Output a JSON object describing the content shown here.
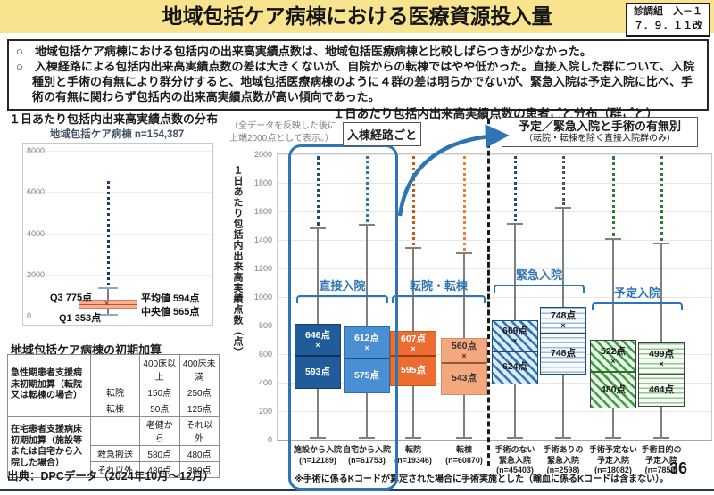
{
  "header": {
    "title": "地域包括ケア病棟における医療資源投入量",
    "ref_line1": "診調組　入－１",
    "ref_line2": "７．９．１１改"
  },
  "summary": {
    "bullets": [
      "地域包括ケア病棟における包括内の出来高実績点数は、地域包括医療病棟と比較しばらつきが少なかった。",
      "入棟経路による包括内出来高実績点数の差は大きくないが、自院からの転棟ではやや低かった。直接入院した群について、入院種別と手術の有無により群分けすると、地域包括医療病棟のように４群の差は明らかでないが、緊急入院は予定入院に比べ、手術の有無に関わらず包括内の出来高実績点数が高い傾向であった。"
    ]
  },
  "left_panel": {
    "heading": "１日あたり包括内出来高実績点数の分布",
    "table": {
      "title": "地域包括ケア病棟の初期加算",
      "groups": [
        {
          "label": "急性期患者支援病床初期加算（転院又は転棟の場合）",
          "rows": [
            [
              "",
              "400床以上",
              "400床未満"
            ],
            [
              "転院",
              "150点",
              "250点"
            ],
            [
              "転棟",
              "50点",
              "125点"
            ]
          ]
        },
        {
          "label": "在宅患者支援病床初期加算（施設等または自宅から入院した場合）",
          "rows": [
            [
              "",
              "老健から",
              "それ以外"
            ],
            [
              "救急搬送",
              "580点",
              "480点"
            ],
            [
              "それ以外",
              "480点",
              "380点"
            ]
          ]
        }
      ]
    },
    "source": "出典：DPCデータ（2024年10月～12月）"
  },
  "right_panel": {
    "route_box_label": "入棟経路ごと",
    "group_box_label_line1": "予定／緊急入院と手術の有無別",
    "group_box_label_line2": "（転院・転棟を除く直接入院群のみ）",
    "footnote": "※手術に係るKコードが算定された場合に手術実施とした（輸血に係るKコードは含まない）。",
    "page_number": "36",
    "accent_color": "#2E75B6"
  },
  "chart_data": [
    {
      "type": "boxplot",
      "title": "地域包括ケア病棟 n=154,387",
      "ylim": [
        0,
        8000
      ],
      "yticks": [
        0,
        2000,
        4000,
        6000,
        8000
      ],
      "grid": "faint",
      "series": [
        {
          "name": "地域包括ケア病棟",
          "q1": 353,
          "median": 565,
          "mean": 594,
          "q3": 775,
          "whisker_low": 0,
          "whisker_high": 1400,
          "outlier_max": 6550
        }
      ],
      "labels": {
        "q3": "Q3 775点",
        "q1": "Q1 353点",
        "mean": "平均値 594点",
        "median": "中央値 565点"
      },
      "box_color": "#F6B28E",
      "box_border": "#D87C5A",
      "median_color": "#C0504D",
      "dot_color": "#1F3864",
      "cap_color": "#8EA9C8"
    },
    {
      "type": "boxplot",
      "title": "１日あたり包括内出来高実績点数の患者ごと分布（群ごと）",
      "ylabel": "１日あたり包括内出来高実績点数（点）",
      "note": "（全データを反映した後に\n上端2000点として表示。）",
      "ylim": [
        0,
        2000
      ],
      "yticks": [
        0,
        200,
        400,
        600,
        800,
        1000,
        1200,
        1400,
        1600,
        1800,
        2000
      ],
      "grid": "on",
      "groups": [
        {
          "label": "直接入院",
          "from": 0,
          "to": 1,
          "bracket_y": 158
        },
        {
          "label": "転院・転棟",
          "from": 2,
          "to": 3,
          "bracket_y": 158
        },
        {
          "label": "緊急入院",
          "from": 4,
          "to": 5,
          "bracket_y": 146
        },
        {
          "label": "予定入院",
          "from": 6,
          "to": 7,
          "bracket_y": 166
        }
      ],
      "boxes": [
        {
          "label": "施設から入院",
          "n_label": "(n=12189)",
          "mean": 646,
          "median": 593,
          "q1": 355,
          "q3": 815,
          "whisker_low": 0,
          "whisker_high": 1490,
          "style": {
            "pattern": "solid",
            "fill": "#1F5C99",
            "stripe": "",
            "border": "#173F66",
            "text": "#FFFFFF",
            "median": "#102E4E",
            "dots": "#1F4E79"
          }
        },
        {
          "label": "自宅から入院",
          "n_label": "(n=61753)",
          "mean": 612,
          "median": 575,
          "q1": 325,
          "q3": 795,
          "whisker_low": 0,
          "whisker_high": 1510,
          "style": {
            "pattern": "solid",
            "fill": "#4A8FD3",
            "stripe": "",
            "border": "#2F6DA8",
            "text": "#FFFFFF",
            "median": "#1F4E79",
            "dots": "#2E75B6"
          }
        },
        {
          "label": "転院",
          "n_label": "(n=19346)",
          "mean": 607,
          "median": 595,
          "q1": 375,
          "q3": 765,
          "whisker_low": 0,
          "whisker_high": 1350,
          "style": {
            "pattern": "solid",
            "fill": "#ED6C31",
            "stripe": "",
            "border": "#C55A11",
            "text": "#FFFFFF",
            "median": "#9C3B0C",
            "dots": "#C55A11"
          }
        },
        {
          "label": "転棟",
          "n_label": "(n=60870)",
          "mean": 560,
          "median": 543,
          "q1": 315,
          "q3": 715,
          "whisker_low": 0,
          "whisker_high": 1310,
          "style": {
            "pattern": "solid",
            "fill": "#F5A87E",
            "stripe": "",
            "border": "#D98C63",
            "text": "#333333",
            "median": "#8C5A3C",
            "dots": "#ED7D31"
          }
        },
        {
          "label": "手術のない\n緊急入院",
          "n_label": "(n=45403)",
          "mean": 669,
          "median": 624,
          "q1": 390,
          "q3": 840,
          "whisker_low": 0,
          "whisker_high": 1520,
          "style": {
            "pattern": "diag",
            "fill": "#DDEBF7",
            "stripe": "#2E75B6",
            "border": "#1F4E79",
            "text": "#1A1A1A",
            "median": "#1F4E79",
            "dots": "#1F4E79"
          }
        },
        {
          "label": "手術ありの\n緊急入院",
          "n_label": "(n=2598)",
          "mean": 748,
          "median": 748,
          "q1": 455,
          "q3": 930,
          "whisker_low": 0,
          "whisker_high": 1630,
          "style": {
            "pattern": "wave",
            "fill": "#F6FAFD",
            "stripe": "#9DB9D9",
            "border": "#1F4E79",
            "text": "#1A1A1A",
            "median": "#1F4E79",
            "dots": "#44546A"
          }
        },
        {
          "label": "手術予定ない\n予定入院",
          "n_label": "(n=18082)",
          "mean": 522,
          "median": 480,
          "q1": 220,
          "q3": 700,
          "whisker_low": 0,
          "whisker_high": 1410,
          "style": {
            "pattern": "diag",
            "fill": "#EAF4EA",
            "stripe": "#3FA03F",
            "border": "#404040",
            "text": "#1A1A1A",
            "median": "#2F6B2F",
            "dots": "#2E7D32"
          }
        },
        {
          "label": "手術目的の\n予定入院",
          "n_label": "(n=7859)",
          "mean": 499,
          "median": 464,
          "q1": 230,
          "q3": 680,
          "whisker_low": 0,
          "whisker_high": 1380,
          "style": {
            "pattern": "wave",
            "fill": "#F7FCF7",
            "stripe": "#8FC98F",
            "border": "#404040",
            "text": "#1A1A1A",
            "median": "#4D4D4D",
            "dots": "#2E7D32"
          }
        }
      ]
    }
  ]
}
